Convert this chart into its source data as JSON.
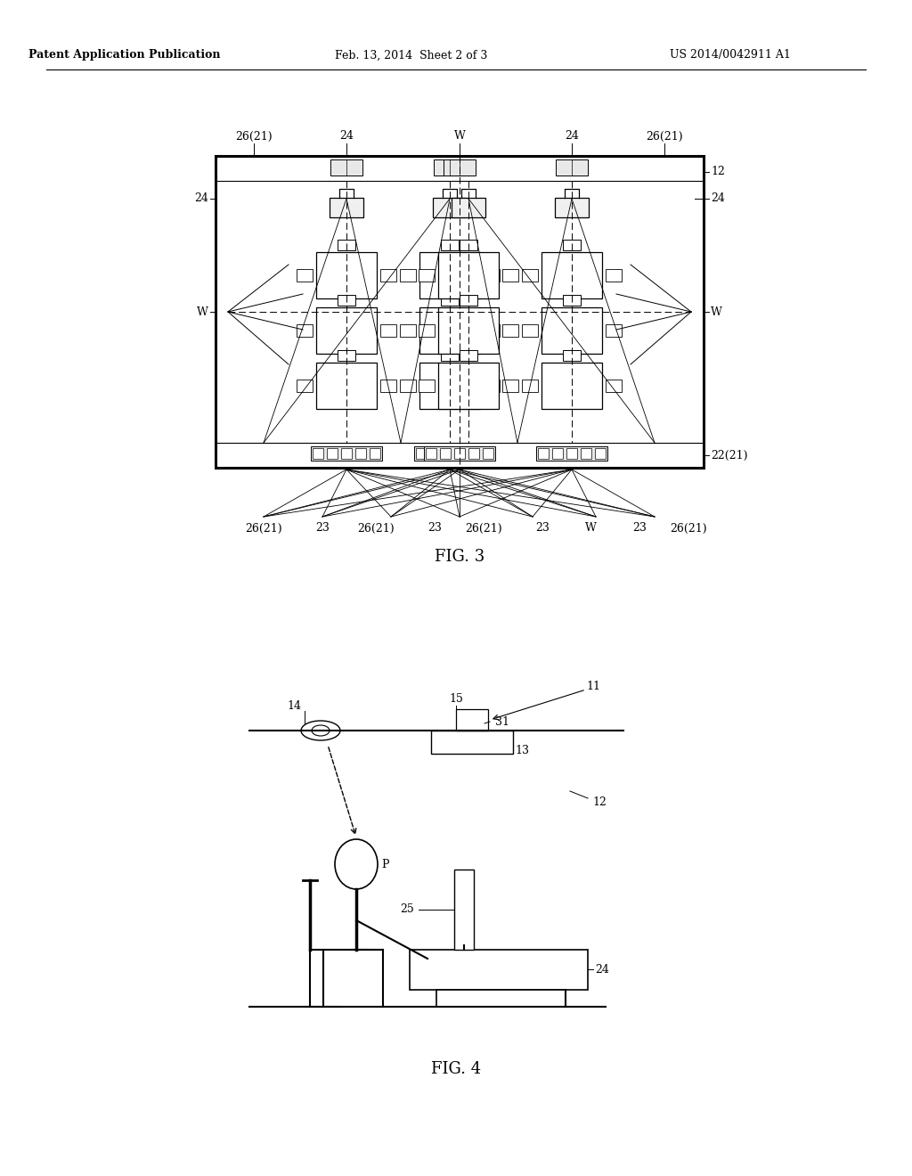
{
  "bg_color": "#ffffff",
  "line_color": "#000000",
  "header_left": "Patent Application Publication",
  "header_center": "Feb. 13, 2014  Sheet 2 of 3",
  "header_right": "US 2014/0042911 A1",
  "fig3_label": "FIG. 3",
  "fig4_label": "FIG. 4"
}
